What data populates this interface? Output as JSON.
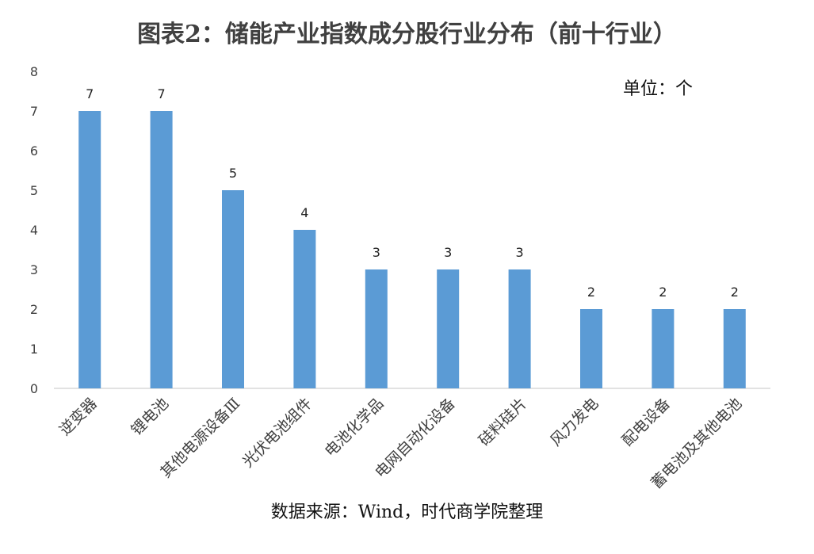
{
  "title": "图表2：储能产业指数成分股行业分布（前十行业）",
  "unit_label": "单位：个",
  "source": "数据来源：Wind，时代商学院整理",
  "bar_color": "#5b9bd5",
  "chart_data": {
    "type": "bar",
    "title": "图表2：储能产业指数成分股行业分布（前十行业）",
    "categories": [
      "逆变器",
      "锂电池",
      "其他电源设备Ⅲ",
      "光伏电池组件",
      "电池化学品",
      "电网自动化设备",
      "硅料硅片",
      "风力发电",
      "配电设备",
      "蓄电池及其他电池"
    ],
    "values": [
      7,
      7,
      5,
      4,
      3,
      3,
      3,
      2,
      2,
      2
    ],
    "ylim": [
      0,
      8
    ],
    "yticks": [
      0,
      1,
      2,
      3,
      4,
      5,
      6,
      7,
      8
    ],
    "grid": false,
    "legend": "none"
  }
}
